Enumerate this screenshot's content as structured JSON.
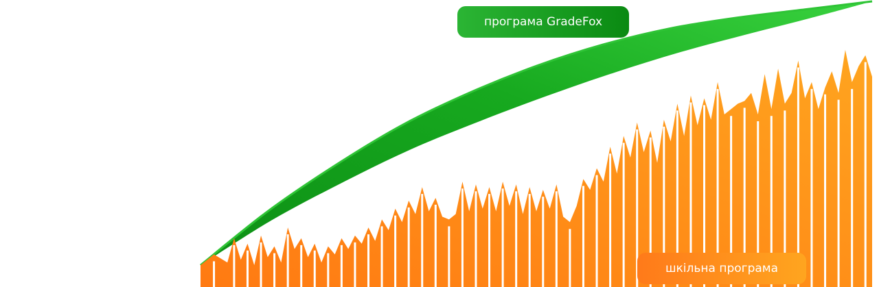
{
  "y_axis_labels": {
    "top": "",
    "mid": "",
    "low": ""
  },
  "labels": {
    "gradefox": "програма GradeFox",
    "school": "шкільна програма"
  },
  "colors": {
    "gradefox": "#0f9a17",
    "gradefox_light": "#2fc436",
    "school_start": "#ff7a12",
    "school_end": "#ffa51f"
  },
  "chart_data": {
    "type": "line",
    "ylim": [
      0,
      100
    ],
    "xlim": [
      0,
      100
    ],
    "grid": false,
    "series": [
      {
        "name": "програма GradeFox",
        "x": [
          0,
          10,
          20,
          30,
          40,
          50,
          60,
          70,
          80,
          90,
          100
        ],
        "y": [
          2,
          22,
          39,
          54,
          66,
          76,
          84,
          90,
          94,
          97,
          100
        ]
      },
      {
        "name": "шкільна програма",
        "x": [
          0,
          2,
          4,
          5,
          6,
          7,
          8,
          9,
          10,
          11,
          12,
          13,
          14,
          15,
          16,
          17,
          18,
          19,
          20,
          21,
          22,
          23,
          24,
          25,
          26,
          27,
          28,
          29,
          30,
          31,
          32,
          33,
          34,
          35,
          36,
          37,
          38,
          39,
          40,
          41,
          42,
          43,
          44,
          45,
          46,
          47,
          48,
          49,
          50,
          51,
          52,
          53,
          54,
          55,
          56,
          57,
          58,
          59,
          60,
          61,
          62,
          63,
          64,
          65,
          66,
          67,
          68,
          69,
          70,
          71,
          72,
          73,
          74,
          75,
          76,
          77,
          78,
          79,
          80,
          81,
          82,
          83,
          84,
          85,
          86,
          87,
          88,
          89,
          90,
          91,
          92,
          93,
          94,
          95,
          96,
          97,
          98,
          99,
          100
        ],
        "y": [
          2,
          6,
          3,
          12,
          4,
          10,
          2,
          13,
          5,
          9,
          3,
          16,
          8,
          12,
          5,
          10,
          3,
          9,
          6,
          12,
          8,
          13,
          10,
          16,
          11,
          19,
          15,
          23,
          18,
          26,
          21,
          31,
          22,
          27,
          20,
          19,
          21,
          33,
          22,
          32,
          23,
          31,
          22,
          33,
          24,
          32,
          21,
          31,
          22,
          30,
          23,
          32,
          20,
          18,
          24,
          34,
          30,
          38,
          33,
          46,
          36,
          50,
          42,
          55,
          44,
          52,
          40,
          56,
          48,
          62,
          50,
          65,
          54,
          64,
          56,
          70,
          58,
          60,
          62,
          63,
          66,
          58,
          73,
          60,
          75,
          62,
          66,
          78,
          64,
          70,
          60,
          68,
          74,
          66,
          82,
          70,
          76,
          80,
          72
        ]
      }
    ]
  }
}
